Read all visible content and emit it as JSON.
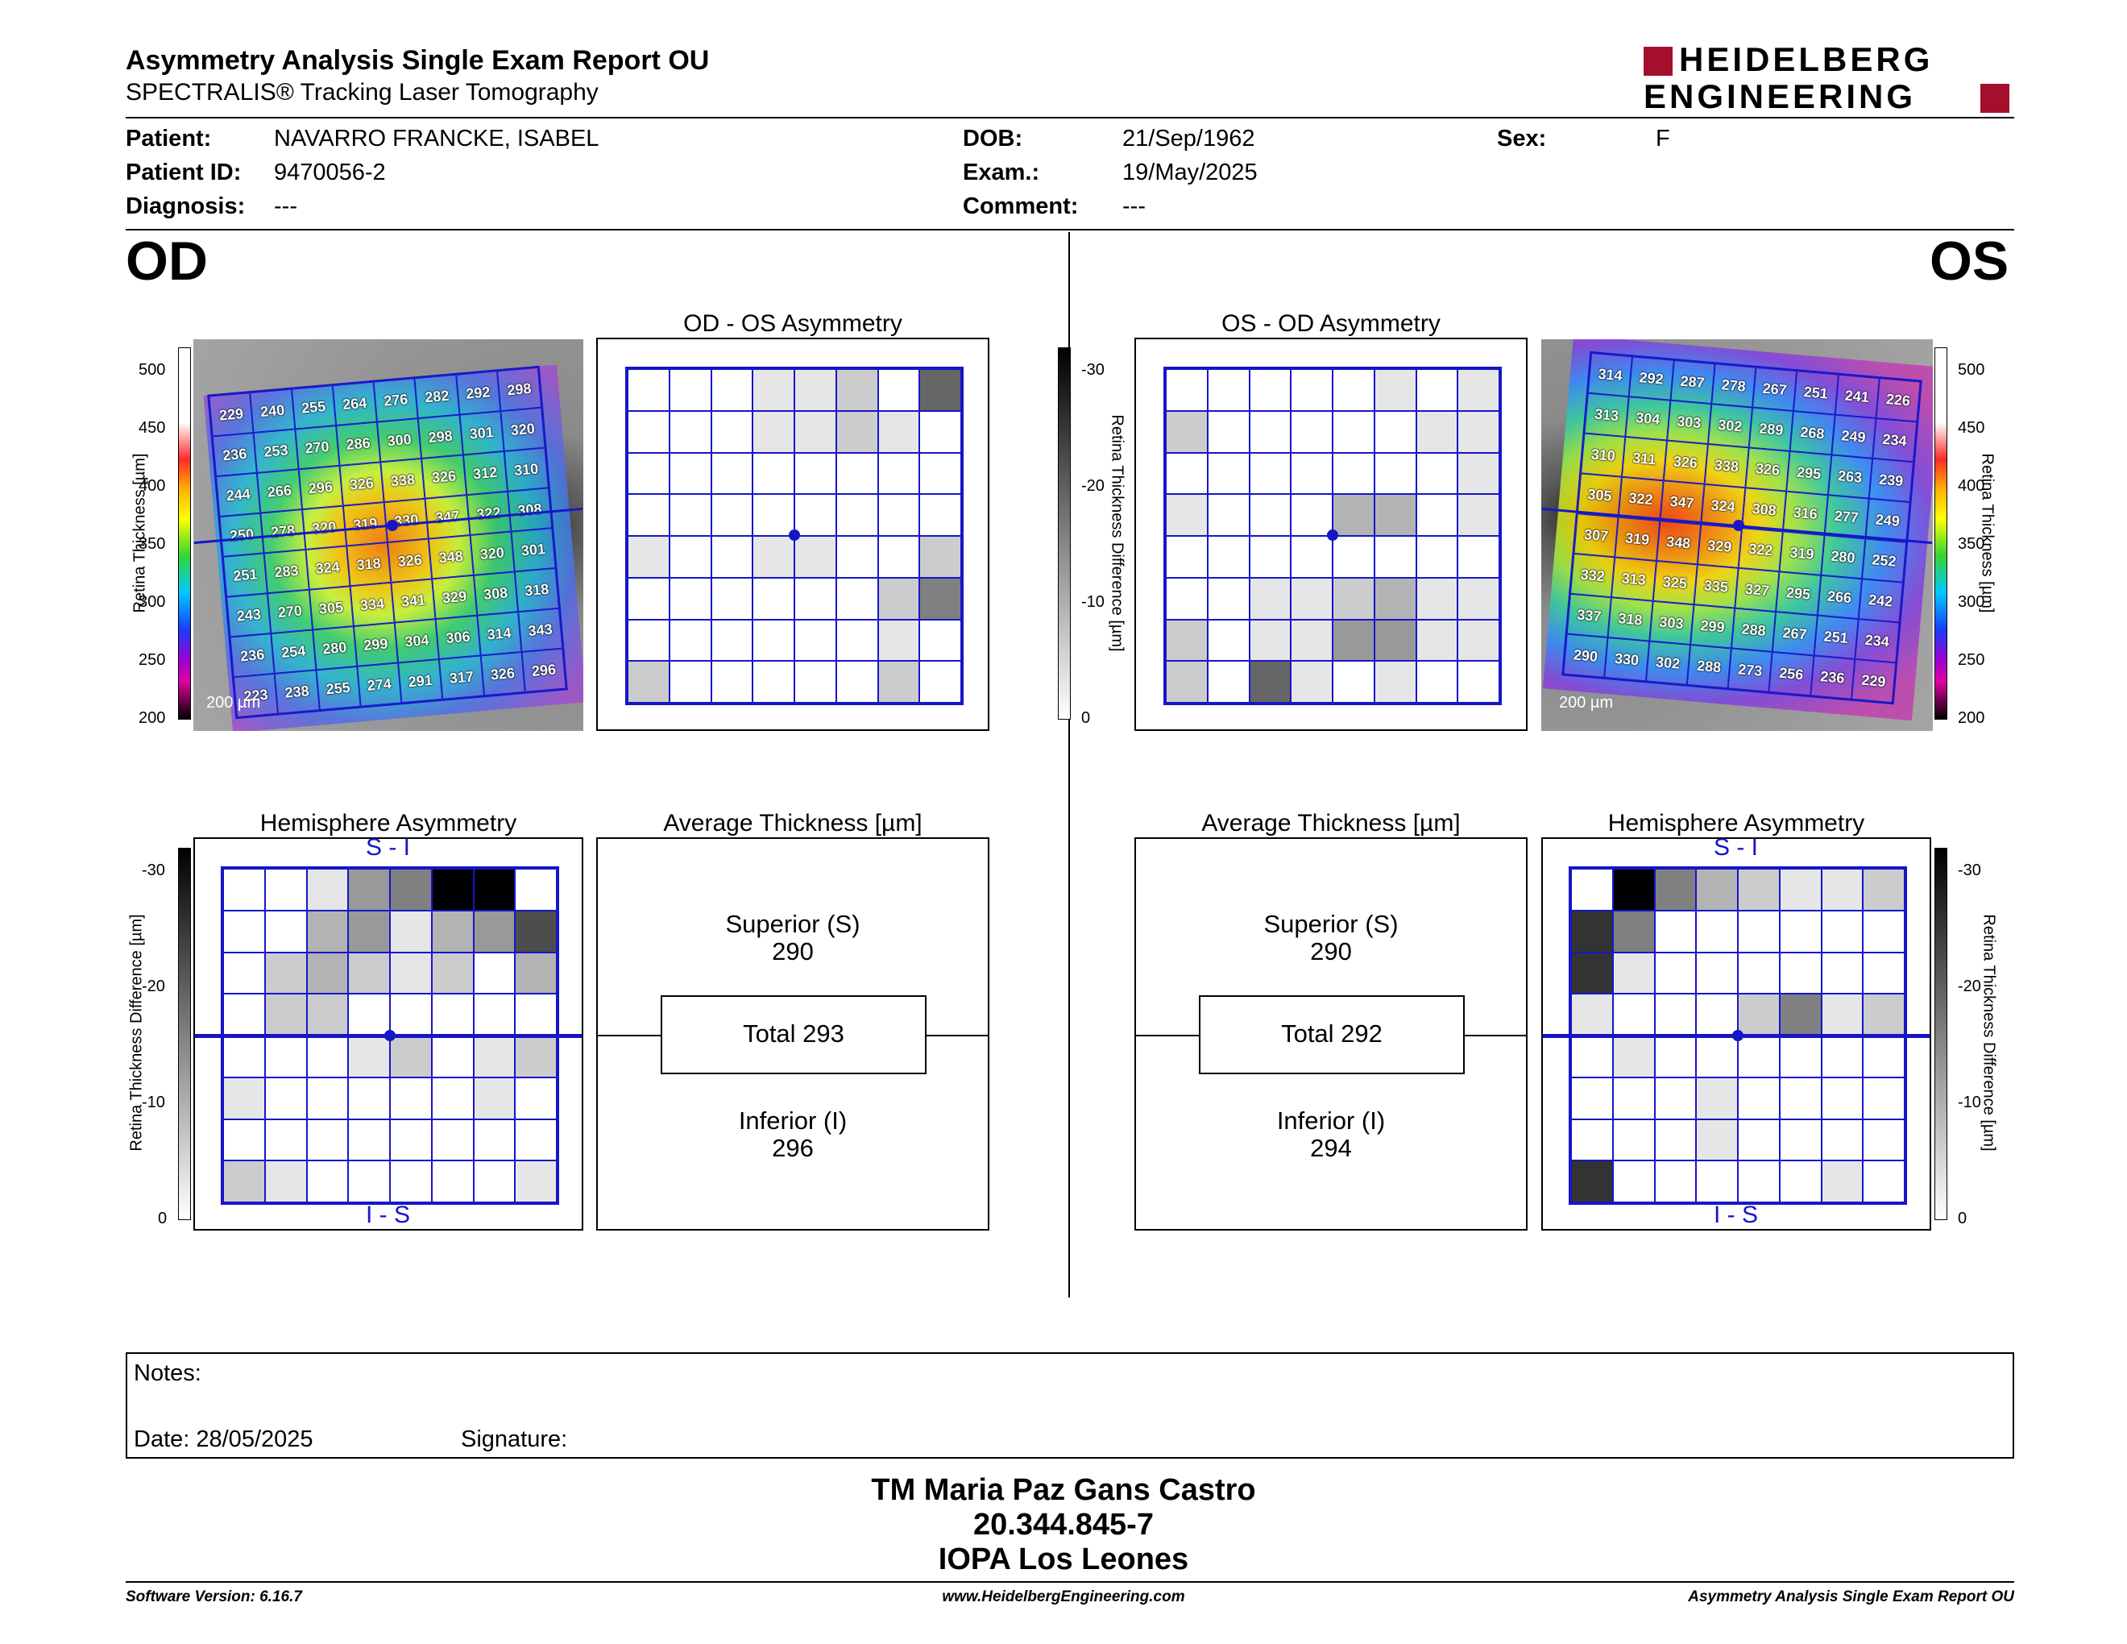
{
  "header": {
    "title": "Asymmetry Analysis Single Exam Report OU",
    "subtitle": "SPECTRALIS® Tracking Laser Tomography",
    "logo_line1": "HEIDELBERG",
    "logo_line2": "ENGINEERING"
  },
  "patient": {
    "patient_label": "Patient:",
    "patient_value": "NAVARRO FRANCKE, ISABEL",
    "id_label": "Patient ID:",
    "id_value": "9470056-2",
    "diag_label": "Diagnosis:",
    "diag_value": "---",
    "dob_label": "DOB:",
    "dob_value": "21/Sep/1962",
    "exam_label": "Exam.:",
    "exam_value": "19/May/2025",
    "comment_label": "Comment:",
    "comment_value": "---",
    "sex_label": "Sex:",
    "sex_value": "F"
  },
  "od": {
    "label": "OD",
    "thickness_values": [
      [
        229,
        240,
        255,
        264,
        276,
        282,
        292,
        298
      ],
      [
        236,
        253,
        270,
        286,
        300,
        298,
        301,
        320
      ],
      [
        244,
        266,
        296,
        326,
        338,
        326,
        312,
        310
      ],
      [
        250,
        278,
        320,
        319,
        330,
        347,
        322,
        308
      ],
      [
        251,
        283,
        324,
        318,
        326,
        348,
        320,
        301
      ],
      [
        243,
        270,
        305,
        334,
        341,
        329,
        308,
        318
      ],
      [
        236,
        254,
        280,
        299,
        304,
        306,
        314,
        343
      ],
      [
        223,
        238,
        255,
        274,
        291,
        317,
        326,
        296
      ]
    ],
    "scale_bar": "200 µm",
    "asym_title": "OD - OS Asymmetry",
    "asym_grays": [
      [
        0,
        0,
        0,
        1,
        1,
        2,
        0,
        6
      ],
      [
        0,
        0,
        0,
        1,
        1,
        2,
        1,
        0
      ],
      [
        0,
        0,
        0,
        0,
        0,
        0,
        0,
        0
      ],
      [
        0,
        0,
        0,
        0,
        0,
        0,
        0,
        0
      ],
      [
        1,
        0,
        0,
        1,
        1,
        0,
        0,
        2
      ],
      [
        0,
        0,
        0,
        0,
        0,
        0,
        2,
        5
      ],
      [
        0,
        0,
        0,
        0,
        0,
        0,
        1,
        0
      ],
      [
        2,
        0,
        0,
        0,
        0,
        0,
        2,
        0
      ]
    ],
    "hemi_title": "Hemisphere Asymmetry",
    "hemi_top": "S - I",
    "hemi_bottom": "I - S",
    "hemi_grays": [
      [
        0,
        0,
        1,
        4,
        5,
        10,
        10,
        0
      ],
      [
        0,
        0,
        3,
        4,
        1,
        3,
        4,
        7
      ],
      [
        0,
        2,
        3,
        2,
        1,
        2,
        0,
        3
      ],
      [
        0,
        2,
        2,
        0,
        0,
        0,
        0,
        0
      ],
      [
        0,
        0,
        0,
        1,
        2,
        0,
        1,
        2
      ],
      [
        1,
        0,
        0,
        0,
        0,
        0,
        1,
        0
      ],
      [
        0,
        0,
        0,
        0,
        0,
        0,
        0,
        0
      ],
      [
        2,
        1,
        0,
        0,
        0,
        0,
        0,
        1
      ]
    ],
    "avg_title": "Average Thickness [µm]",
    "superior_label": "Superior (S)",
    "superior_value": "290",
    "total_label": "Total 293",
    "inferior_label": "Inferior (I)",
    "inferior_value": "296"
  },
  "os": {
    "label": "OS",
    "thickness_values": [
      [
        314,
        292,
        287,
        278,
        267,
        251,
        241,
        226
      ],
      [
        313,
        304,
        303,
        302,
        289,
        268,
        249,
        234
      ],
      [
        310,
        311,
        326,
        338,
        326,
        295,
        263,
        239
      ],
      [
        305,
        322,
        347,
        324,
        308,
        316,
        277,
        249
      ],
      [
        307,
        319,
        348,
        329,
        322,
        319,
        280,
        252
      ],
      [
        332,
        313,
        325,
        335,
        327,
        295,
        266,
        242
      ],
      [
        337,
        318,
        303,
        299,
        288,
        267,
        251,
        234
      ],
      [
        290,
        330,
        302,
        288,
        273,
        256,
        236,
        229
      ]
    ],
    "scale_bar": "200 µm",
    "asym_title": "OS - OD Asymmetry",
    "asym_grays": [
      [
        0,
        0,
        0,
        0,
        0,
        1,
        0,
        1
      ],
      [
        2,
        0,
        0,
        0,
        0,
        0,
        1,
        1
      ],
      [
        0,
        0,
        0,
        0,
        0,
        0,
        0,
        1
      ],
      [
        1,
        0,
        0,
        0,
        3,
        3,
        0,
        1
      ],
      [
        0,
        0,
        0,
        0,
        0,
        0,
        0,
        0
      ],
      [
        0,
        0,
        1,
        1,
        2,
        3,
        1,
        1
      ],
      [
        2,
        0,
        1,
        1,
        4,
        4,
        1,
        1
      ],
      [
        2,
        0,
        6,
        1,
        0,
        1,
        0,
        0
      ]
    ],
    "hemi_title": "Hemisphere Asymmetry",
    "hemi_top": "S - I",
    "hemi_bottom": "I - S",
    "hemi_grays": [
      [
        0,
        10,
        5,
        3,
        2,
        1,
        1,
        2
      ],
      [
        8,
        5,
        0,
        0,
        0,
        0,
        0,
        0
      ],
      [
        8,
        1,
        0,
        0,
        0,
        0,
        0,
        0
      ],
      [
        1,
        0,
        0,
        0,
        2,
        5,
        1,
        2
      ],
      [
        0,
        1,
        0,
        0,
        0,
        0,
        0,
        0
      ],
      [
        0,
        0,
        0,
        1,
        0,
        0,
        0,
        0
      ],
      [
        0,
        0,
        0,
        1,
        0,
        0,
        0,
        0
      ],
      [
        8,
        0,
        0,
        0,
        0,
        0,
        1,
        0
      ]
    ],
    "avg_title": "Average Thickness [µm]",
    "superior_label": "Superior (S)",
    "superior_value": "290",
    "total_label": "Total 292",
    "inferior_label": "Inferior (I)",
    "inferior_value": "294"
  },
  "scales": {
    "thickness_label": "Retina Thickness [µm]",
    "thickness_ticks": [
      "500",
      "450",
      "400",
      "350",
      "300",
      "250",
      "200"
    ],
    "diff_label": "Retina Thickness Difference [µm]",
    "diff_ticks": [
      "-30",
      "-20",
      "-10",
      "0"
    ]
  },
  "notes": {
    "notes_label": "Notes:",
    "date_label": "Date: 28/05/2025",
    "signature_label": "Signature:"
  },
  "signature_block": {
    "line1": "TM Maria Paz Gans Castro",
    "line2": "20.344.845-7",
    "line3": "IOPA Los Leones"
  },
  "footer": {
    "left": "Software Version: 6.16.7",
    "center": "www.HeidelbergEngineering.com",
    "right": "Asymmetry Analysis Single Exam Report OU"
  },
  "colors": {
    "brand_red": "#a4102c",
    "grid_blue": "#1616c8"
  }
}
